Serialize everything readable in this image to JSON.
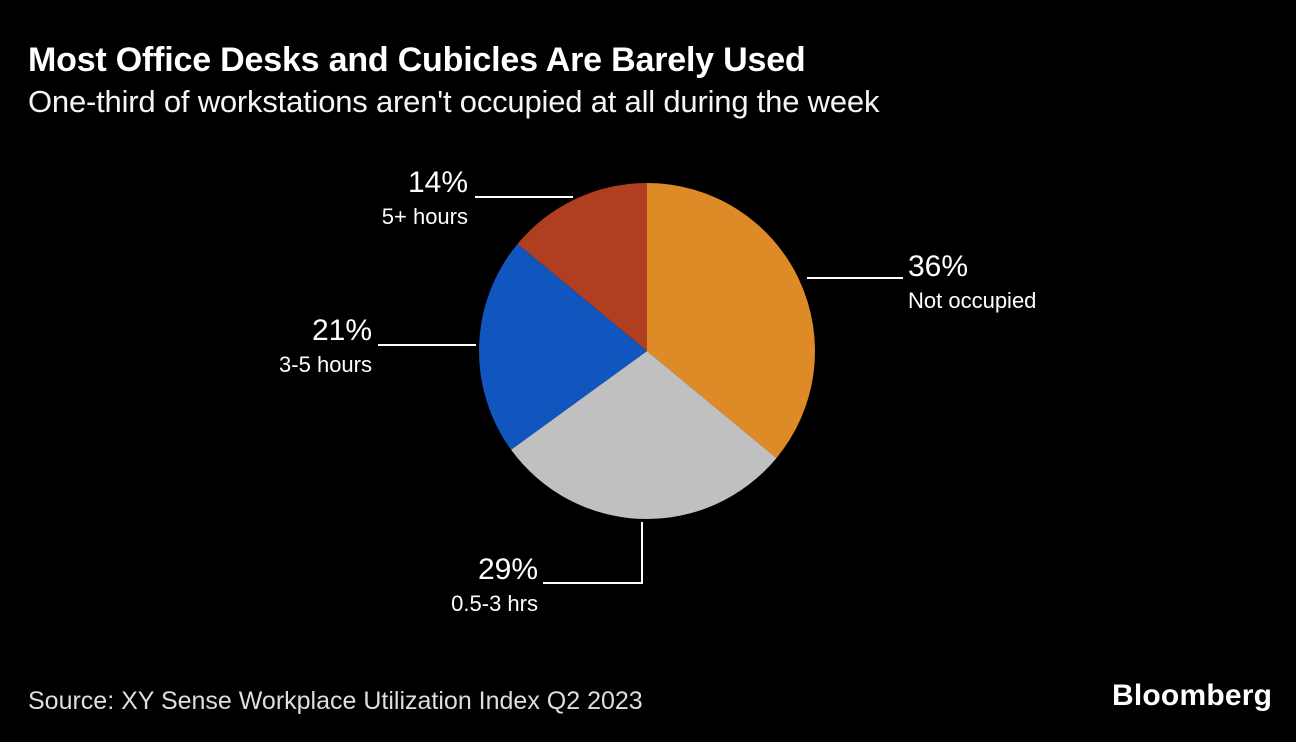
{
  "chart_data": {
    "type": "pie",
    "title": "Most Office Desks and Cubicles Are Barely Used",
    "subtitle": "One-third of workstations aren't occupied at all during the week",
    "start_angle_deg": 0,
    "direction": "clockwise",
    "legend_position": "callout-labels",
    "slices": [
      {
        "label": "Not occupied",
        "value": 36,
        "pct_text": "36%",
        "color": "#DE8A27",
        "label_side": "right"
      },
      {
        "label": "0.5-3 hrs",
        "value": 29,
        "pct_text": "29%",
        "color": "#C0C0C0",
        "label_side": "bottom"
      },
      {
        "label": "3-5 hours",
        "value": 21,
        "pct_text": "21%",
        "color": "#1155BE",
        "label_side": "left"
      },
      {
        "label": "5+ hours",
        "value": 14,
        "pct_text": "14%",
        "color": "#B03E20",
        "label_side": "top-left"
      }
    ]
  },
  "footer": {
    "source": "Source: XY Sense Workplace Utilization Index Q2 2023",
    "logo": "Bloomberg"
  },
  "colors": {
    "background": "#000000",
    "title_text": "#FFFFFF",
    "subtitle_text": "#F5F5F5",
    "label_text": "#FFFFFF",
    "source_text": "#DEDEDE",
    "leader_line": "#FFFFFF"
  }
}
